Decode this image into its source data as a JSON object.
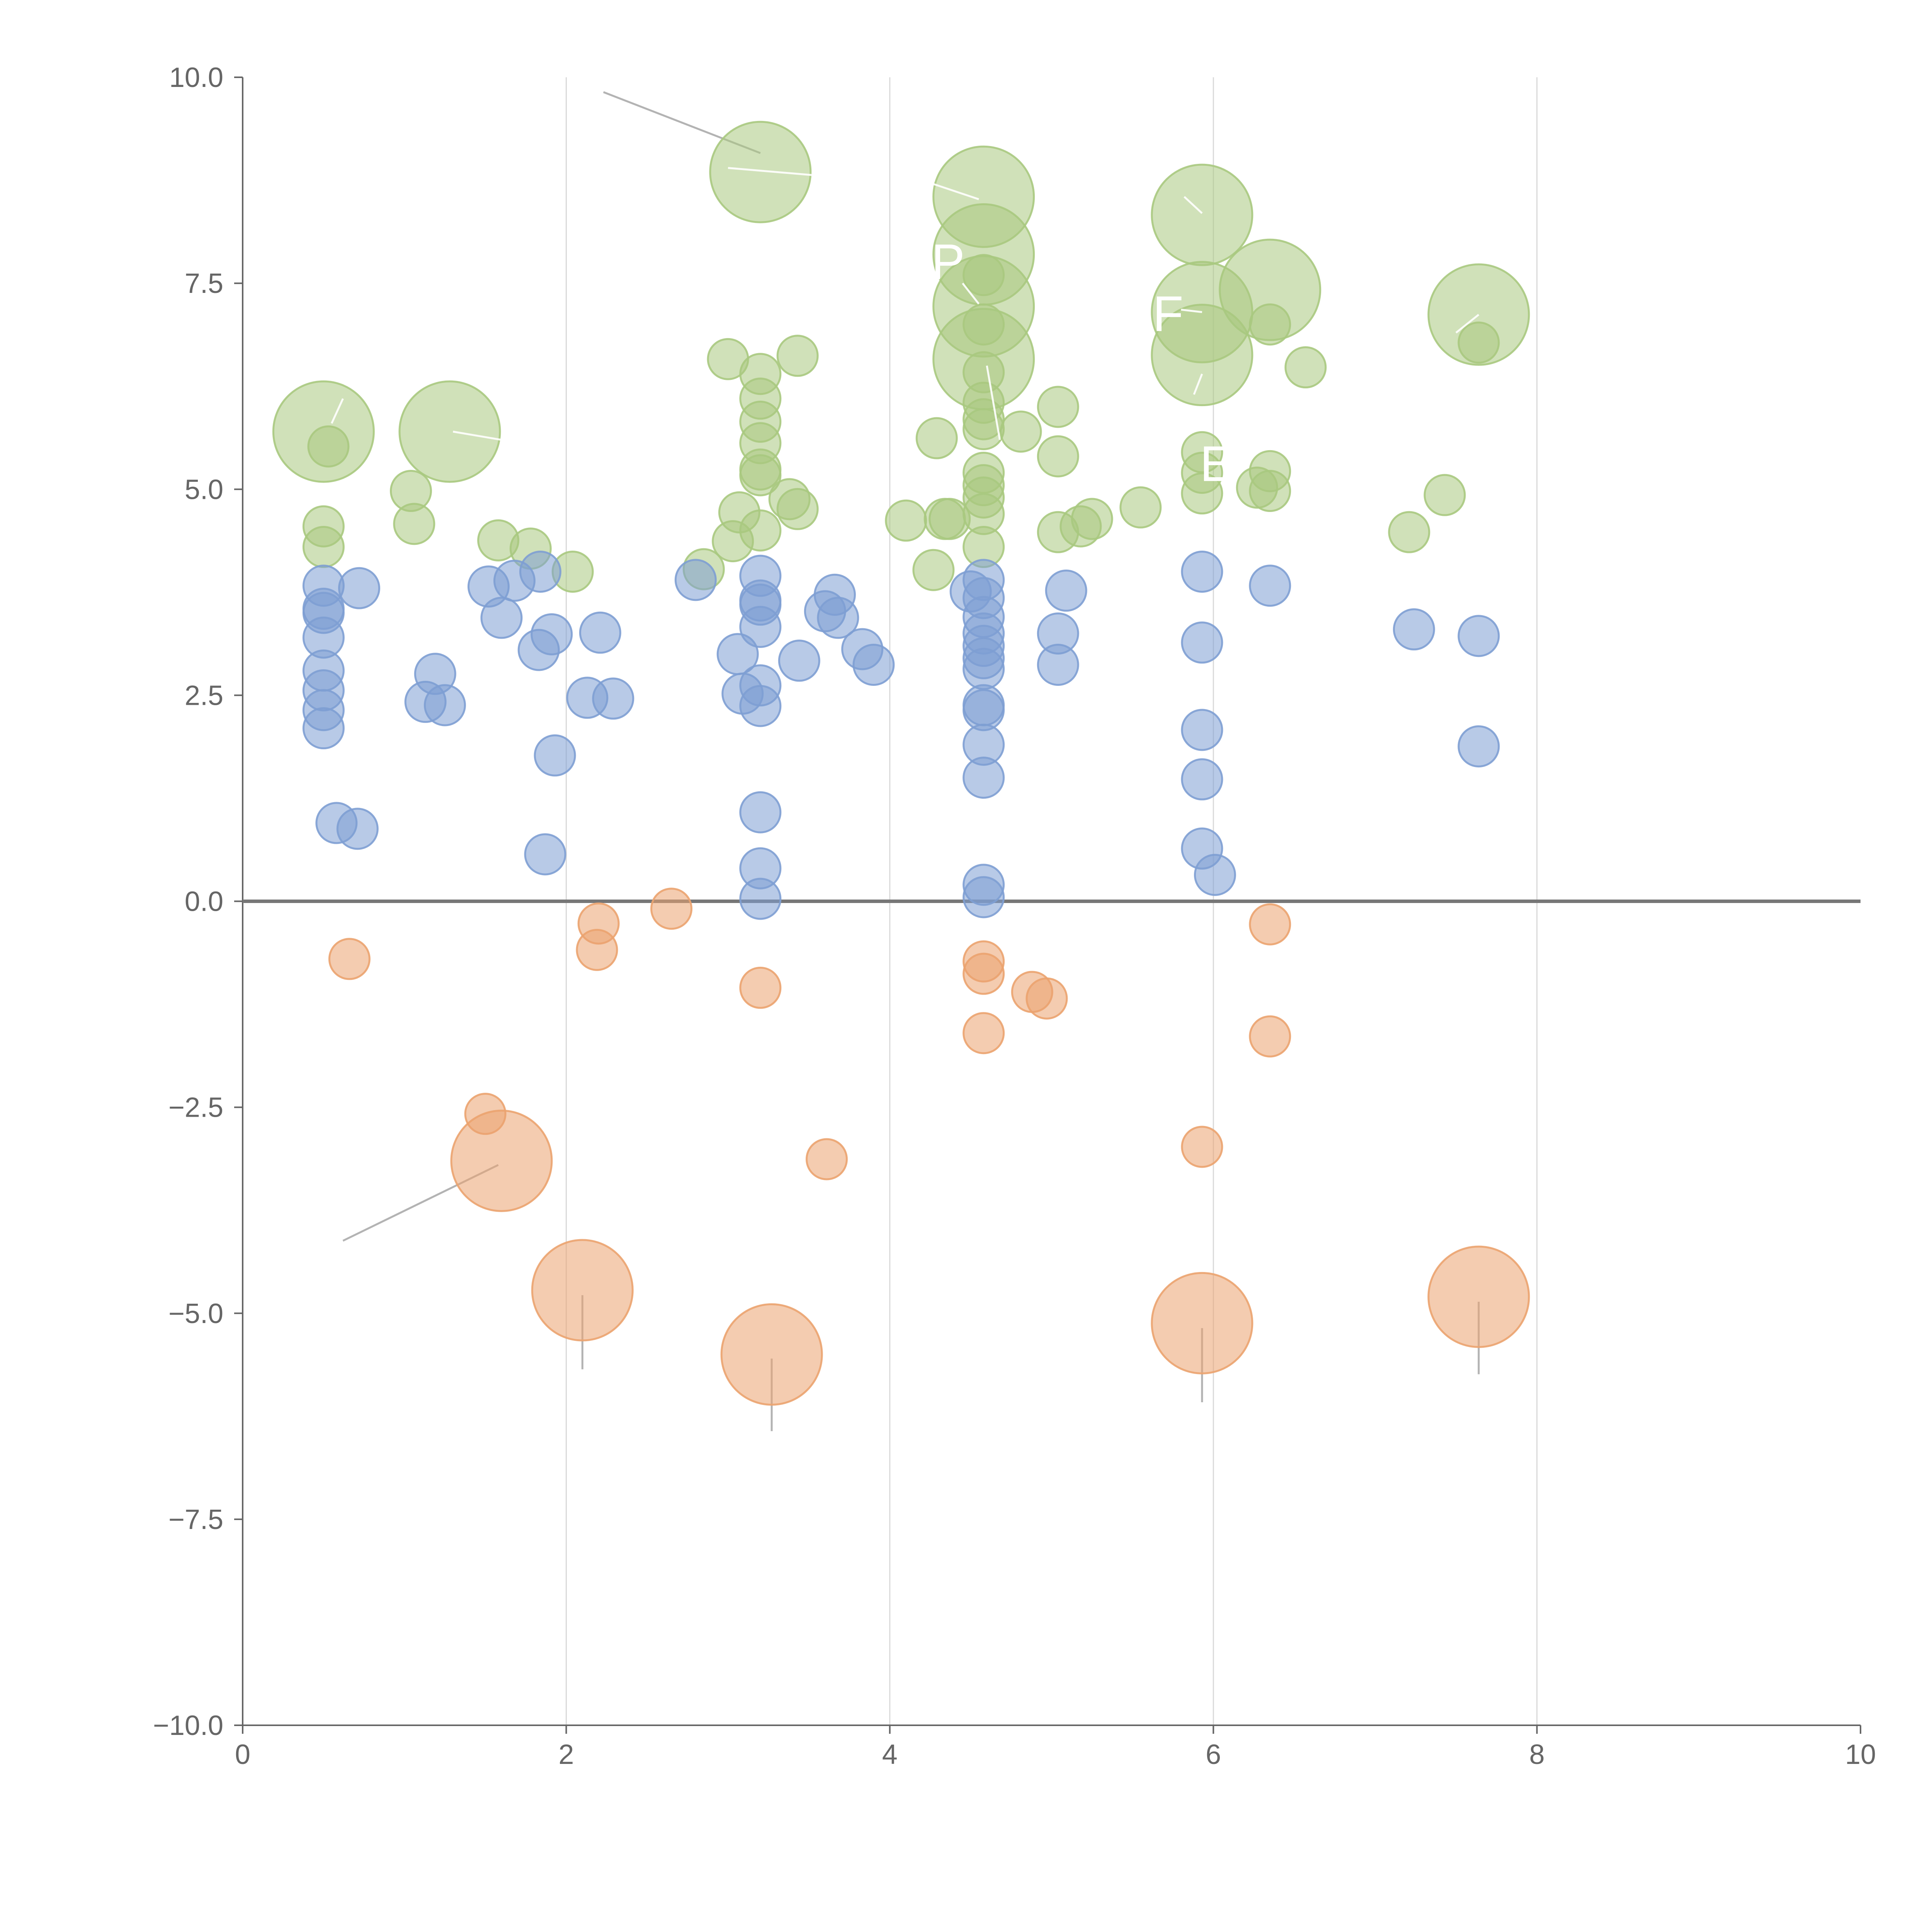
{
  "chart_data": {
    "type": "scatter",
    "title": "",
    "xlabel": "",
    "ylabel": "",
    "xlim": [
      0,
      10
    ],
    "ylim": [
      -10,
      10
    ],
    "x_ticks": [
      "0",
      "2",
      "4",
      "6",
      "8",
      "10"
    ],
    "y_ticks": [
      "10.0",
      "7.5",
      "5.0",
      "2.5",
      "0.0",
      "−2.5",
      "−5.0",
      "−7.5",
      "−10.0"
    ],
    "grid": "vertical",
    "legend": "none",
    "colors": {
      "green": "#a9c97f",
      "blue": "#7e9ed3",
      "orange": "#eba36f",
      "zero_line": "#777777",
      "axis": "#666666",
      "grid": "#d9d9d9"
    },
    "series": [
      {
        "name": "green",
        "color": "#a9c97f",
        "points": [
          [
            0.5,
            4.55,
            1
          ],
          [
            0.5,
            4.3,
            1
          ],
          [
            0.53,
            5.52,
            1
          ],
          [
            1.04,
            4.98,
            1
          ],
          [
            1.06,
            4.58,
            1
          ],
          [
            1.58,
            4.38,
            1
          ],
          [
            1.78,
            4.28,
            1
          ],
          [
            2.04,
            4.0,
            1
          ],
          [
            2.85,
            4.03,
            1
          ],
          [
            3.0,
            6.58,
            1
          ],
          [
            3.03,
            4.37,
            1
          ],
          [
            3.07,
            4.72,
            1
          ],
          [
            3.2,
            6.4,
            1
          ],
          [
            3.2,
            6.1,
            1
          ],
          [
            3.2,
            5.82,
            1
          ],
          [
            3.2,
            5.56,
            1
          ],
          [
            3.2,
            5.24,
            1
          ],
          [
            3.2,
            5.17,
            1
          ],
          [
            3.2,
            4.5,
            1
          ],
          [
            3.38,
            4.88,
            1
          ],
          [
            3.43,
            4.76,
            1
          ],
          [
            3.43,
            6.62,
            1
          ],
          [
            4.1,
            4.62,
            1
          ],
          [
            4.27,
            4.02,
            1
          ],
          [
            4.29,
            5.62,
            1
          ],
          [
            4.34,
            4.64,
            1
          ],
          [
            4.37,
            4.64,
            1
          ],
          [
            4.58,
            7.6,
            1
          ],
          [
            4.58,
            7.0,
            1
          ],
          [
            4.58,
            6.42,
            1
          ],
          [
            4.58,
            6.05,
            1
          ],
          [
            4.58,
            5.85,
            1
          ],
          [
            4.58,
            5.73,
            1
          ],
          [
            4.58,
            5.2,
            1
          ],
          [
            4.58,
            5.05,
            1
          ],
          [
            4.58,
            4.9,
            1
          ],
          [
            4.58,
            4.7,
            1
          ],
          [
            4.58,
            4.3,
            1
          ],
          [
            4.81,
            5.7,
            1
          ],
          [
            5.04,
            6.0,
            1
          ],
          [
            5.04,
            5.4,
            1
          ],
          [
            5.04,
            4.48,
            1
          ],
          [
            5.18,
            4.55,
            1
          ],
          [
            5.25,
            4.64,
            1
          ],
          [
            5.55,
            4.78,
            1
          ],
          [
            5.93,
            5.45,
            1
          ],
          [
            5.93,
            5.2,
            1
          ],
          [
            5.93,
            4.95,
            1
          ],
          [
            6.27,
            5.02,
            1
          ],
          [
            6.35,
            7.0,
            1
          ],
          [
            6.35,
            5.22,
            1
          ],
          [
            6.35,
            4.98,
            1
          ],
          [
            6.57,
            6.48,
            1
          ],
          [
            7.21,
            4.48,
            1
          ],
          [
            7.43,
            4.93,
            1
          ],
          [
            7.64,
            6.78,
            1
          ]
        ]
      },
      {
        "name": "green-large",
        "color": "#a9c97f",
        "points": [
          [
            0.5,
            5.7,
            2.5
          ],
          [
            1.28,
            5.7,
            2.5
          ],
          [
            3.2,
            8.85,
            2.5
          ],
          [
            4.58,
            8.55,
            2.5
          ],
          [
            4.58,
            7.85,
            2.5
          ],
          [
            4.58,
            7.22,
            2.5
          ],
          [
            4.58,
            6.58,
            2.5
          ],
          [
            5.93,
            8.33,
            2.5
          ],
          [
            5.93,
            7.15,
            2.5
          ],
          [
            5.93,
            6.63,
            2.5
          ],
          [
            6.35,
            7.42,
            2.5
          ],
          [
            7.64,
            7.12,
            2.5
          ]
        ]
      },
      {
        "name": "blue",
        "color": "#7e9ed3",
        "points": [
          [
            0.5,
            3.83,
            1
          ],
          [
            0.5,
            3.55,
            1
          ],
          [
            0.5,
            3.5,
            1
          ],
          [
            0.5,
            3.2,
            1
          ],
          [
            0.5,
            2.8,
            1
          ],
          [
            0.5,
            2.56,
            1
          ],
          [
            0.5,
            2.32,
            1
          ],
          [
            0.5,
            2.1,
            1
          ],
          [
            0.58,
            0.95,
            1
          ],
          [
            0.71,
            0.88,
            1
          ],
          [
            0.72,
            3.8,
            1
          ],
          [
            1.13,
            2.42,
            1
          ],
          [
            1.19,
            2.76,
            1
          ],
          [
            1.25,
            2.38,
            1
          ],
          [
            1.52,
            3.82,
            1
          ],
          [
            1.6,
            3.44,
            1
          ],
          [
            1.68,
            3.89,
            1
          ],
          [
            1.83,
            3.05,
            1
          ],
          [
            1.84,
            4.0,
            1
          ],
          [
            1.87,
            0.57,
            1
          ],
          [
            1.91,
            3.24,
            1
          ],
          [
            1.93,
            1.77,
            1
          ],
          [
            2.13,
            2.47,
            1
          ],
          [
            2.21,
            3.26,
            1
          ],
          [
            2.29,
            2.46,
            1
          ],
          [
            2.8,
            3.9,
            1
          ],
          [
            3.06,
            3.0,
            1
          ],
          [
            3.09,
            2.52,
            1
          ],
          [
            3.2,
            3.95,
            1
          ],
          [
            3.2,
            3.65,
            1
          ],
          [
            3.2,
            3.6,
            1
          ],
          [
            3.2,
            3.33,
            1
          ],
          [
            3.2,
            2.62,
            1
          ],
          [
            3.2,
            2.37,
            1
          ],
          [
            3.2,
            1.08,
            1
          ],
          [
            3.2,
            0.4,
            1
          ],
          [
            3.2,
            0.03,
            1
          ],
          [
            3.44,
            2.92,
            1
          ],
          [
            3.6,
            3.52,
            1
          ],
          [
            3.66,
            3.72,
            1
          ],
          [
            3.68,
            3.44,
            1
          ],
          [
            3.83,
            3.06,
            1
          ],
          [
            3.9,
            2.87,
            1
          ],
          [
            4.5,
            3.76,
            1
          ],
          [
            4.58,
            3.9,
            1
          ],
          [
            4.58,
            3.68,
            1
          ],
          [
            4.58,
            3.45,
            1
          ],
          [
            4.58,
            3.25,
            1
          ],
          [
            4.58,
            3.1,
            1
          ],
          [
            4.58,
            2.95,
            1
          ],
          [
            4.58,
            2.82,
            1
          ],
          [
            4.58,
            2.38,
            1
          ],
          [
            4.58,
            2.32,
            1
          ],
          [
            4.58,
            1.9,
            1
          ],
          [
            4.58,
            1.5,
            1
          ],
          [
            4.58,
            0.2,
            1
          ],
          [
            4.58,
            0.05,
            1
          ],
          [
            5.04,
            3.25,
            1
          ],
          [
            5.04,
            2.87,
            1
          ],
          [
            5.09,
            3.77,
            1
          ],
          [
            5.93,
            4.0,
            1
          ],
          [
            5.93,
            3.14,
            1
          ],
          [
            5.93,
            2.08,
            1
          ],
          [
            5.93,
            1.48,
            1
          ],
          [
            5.93,
            0.64,
            1
          ],
          [
            6.01,
            0.32,
            1
          ],
          [
            6.35,
            3.83,
            1
          ],
          [
            7.24,
            3.3,
            1
          ],
          [
            7.64,
            3.22,
            1
          ],
          [
            7.64,
            1.88,
            1
          ]
        ]
      },
      {
        "name": "orange",
        "color": "#eba36f",
        "points": [
          [
            0.66,
            -0.7,
            1
          ],
          [
            1.5,
            -2.58,
            1
          ],
          [
            2.2,
            -0.27,
            1
          ],
          [
            2.19,
            -0.59,
            1
          ],
          [
            2.65,
            -0.09,
            1
          ],
          [
            3.2,
            -1.05,
            1
          ],
          [
            3.61,
            -3.13,
            1
          ],
          [
            4.58,
            -0.73,
            1
          ],
          [
            4.58,
            -0.88,
            1
          ],
          [
            4.58,
            -1.6,
            1
          ],
          [
            4.88,
            -1.1,
            1
          ],
          [
            4.97,
            -1.18,
            1
          ],
          [
            5.93,
            -2.98,
            1
          ],
          [
            6.35,
            -0.28,
            1
          ],
          [
            6.35,
            -1.64,
            1
          ]
        ]
      },
      {
        "name": "orange-large",
        "color": "#eba36f",
        "points": [
          [
            1.6,
            -3.15,
            2.5
          ],
          [
            2.1,
            -4.72,
            2.5
          ],
          [
            3.27,
            -5.5,
            2.5
          ],
          [
            5.93,
            -5.12,
            2.5
          ],
          [
            7.64,
            -4.8,
            2.5
          ]
        ]
      }
    ],
    "leaders": [
      [
        [
          2.23,
          9.82
        ],
        [
          3.2,
          9.08
        ]
      ],
      [
        [
          1.58,
          -3.2
        ],
        [
          0.62,
          -4.12
        ]
      ],
      [
        [
          2.1,
          -4.78
        ],
        [
          2.1,
          -5.68
        ]
      ],
      [
        [
          3.27,
          -5.55
        ],
        [
          3.27,
          -6.43
        ]
      ],
      [
        [
          5.93,
          -5.18
        ],
        [
          5.93,
          -6.08
        ]
      ],
      [
        [
          7.64,
          -4.86
        ],
        [
          7.64,
          -5.74
        ]
      ]
    ],
    "inner_leaders": [
      [
        [
          3.0,
          8.9
        ],
        [
          3.6,
          8.8
        ]
      ],
      [
        [
          4.2,
          8.75
        ],
        [
          4.55,
          8.52
        ]
      ],
      [
        [
          4.45,
          7.5
        ],
        [
          4.55,
          7.25
        ]
      ],
      [
        [
          4.6,
          6.5
        ],
        [
          4.68,
          5.6
        ]
      ],
      [
        [
          5.82,
          8.55
        ],
        [
          5.93,
          8.35
        ]
      ],
      [
        [
          5.8,
          7.18
        ],
        [
          5.93,
          7.15
        ]
      ],
      [
        [
          5.88,
          6.15
        ],
        [
          5.93,
          6.4
        ]
      ],
      [
        [
          0.55,
          5.8
        ],
        [
          0.62,
          6.1
        ]
      ],
      [
        [
          1.3,
          5.7
        ],
        [
          1.6,
          5.6
        ]
      ],
      [
        [
          7.5,
          6.9
        ],
        [
          7.64,
          7.12
        ]
      ]
    ],
    "faint_labels": [
      {
        "text": "E",
        "x": 6.02,
        "y": 5.1
      },
      {
        "text": "P",
        "x": 4.36,
        "y": 7.55
      },
      {
        "text": "F",
        "x": 5.72,
        "y": 6.92
      }
    ]
  }
}
